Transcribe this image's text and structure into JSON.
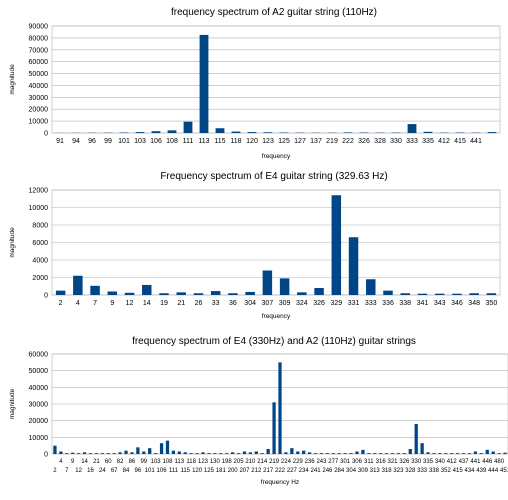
{
  "chart_data": [
    {
      "type": "bar",
      "title": "frequency spectrum of A2 guitar string (110Hz)",
      "xlabel": "frequency",
      "ylabel": "magnitude",
      "ylim": [
        0,
        90000
      ],
      "yticks": [
        0,
        10000,
        20000,
        30000,
        40000,
        50000,
        60000,
        70000,
        80000,
        90000
      ],
      "grid": true,
      "legend": "none",
      "color": "#004586",
      "categories": [
        "91",
        "94",
        "96",
        "99",
        "101",
        "103",
        "106",
        "108",
        "111",
        "113",
        "115",
        "118",
        "120",
        "123",
        "125",
        "127",
        "137",
        "219",
        "222",
        "326",
        "328",
        "330",
        "333",
        "335",
        "412",
        "415",
        "441",
        ""
      ],
      "values": [
        100,
        150,
        200,
        250,
        400,
        800,
        1500,
        2200,
        9500,
        82500,
        4000,
        1200,
        800,
        600,
        400,
        300,
        200,
        250,
        500,
        400,
        300,
        350,
        7500,
        1000,
        300,
        400,
        300,
        800
      ]
    },
    {
      "type": "bar",
      "title": "Frequency spectrum of E4 guitar string (329.63 Hz)",
      "xlabel": "frequency",
      "ylabel": "magnitude",
      "ylim": [
        0,
        12000
      ],
      "yticks": [
        0,
        2000,
        4000,
        6000,
        8000,
        10000,
        12000
      ],
      "grid": true,
      "legend": "none",
      "color": "#004586",
      "categories": [
        "2",
        "4",
        "7",
        "9",
        "12",
        "14",
        "19",
        "21",
        "26",
        "33",
        "36",
        "304",
        "307",
        "309",
        "324",
        "326",
        "329",
        "331",
        "333",
        "336",
        "338",
        "341",
        "343",
        "346",
        "348",
        "350"
      ],
      "values": [
        500,
        2200,
        1050,
        400,
        250,
        1150,
        200,
        300,
        200,
        450,
        200,
        350,
        2800,
        1900,
        300,
        800,
        11400,
        6600,
        1800,
        500,
        200,
        150,
        150,
        150,
        200,
        200
      ]
    },
    {
      "type": "bar",
      "title": "frequency spectrum of E4 (330Hz) and A2 (110Hz) guitar strings",
      "xlabel": "frequency Hz",
      "ylabel": "magnitude",
      "ylim": [
        0,
        60000
      ],
      "yticks": [
        0,
        10000,
        20000,
        30000,
        40000,
        50000,
        60000
      ],
      "grid": true,
      "legend": "none",
      "color": "#004586",
      "categories": [
        "2",
        "4",
        "7",
        "9",
        "12",
        "14",
        "16",
        "21",
        "24",
        "60",
        "67",
        "82",
        "84",
        "86",
        "96",
        "99",
        "101",
        "103",
        "106",
        "108",
        "111",
        "113",
        "115",
        "118",
        "120",
        "123",
        "125",
        "130",
        "181",
        "198",
        "200",
        "205",
        "207",
        "210",
        "212",
        "214",
        "217",
        "219",
        "222",
        "224",
        "227",
        "229",
        "234",
        "236",
        "241",
        "243",
        "246",
        "277",
        "284",
        "301",
        "304",
        "306",
        "309",
        "311",
        "313",
        "316",
        "318",
        "321",
        "323",
        "326",
        "328",
        "330",
        "333",
        "335",
        "338",
        "340",
        "352",
        "412",
        "415",
        "437",
        "434",
        "441",
        "439",
        "446",
        "444",
        "480",
        "451"
      ],
      "values": [
        5000,
        1500,
        500,
        800,
        500,
        1000,
        500,
        500,
        500,
        500,
        500,
        1000,
        2000,
        1000,
        4000,
        1500,
        3500,
        500,
        6500,
        8000,
        2000,
        1500,
        1000,
        500,
        500,
        1000,
        500,
        500,
        500,
        500,
        1000,
        500,
        1500,
        1000,
        1500,
        500,
        3000,
        31000,
        55000,
        1000,
        3500,
        1500,
        2000,
        1000,
        500,
        500,
        500,
        500,
        500,
        500,
        500,
        1500,
        2500,
        500,
        500,
        500,
        500,
        500,
        500,
        500,
        3000,
        18000,
        6500,
        1000,
        500,
        500,
        500,
        500,
        500,
        500,
        500,
        1500,
        500,
        2500,
        1500,
        500,
        800
      ]
    }
  ]
}
